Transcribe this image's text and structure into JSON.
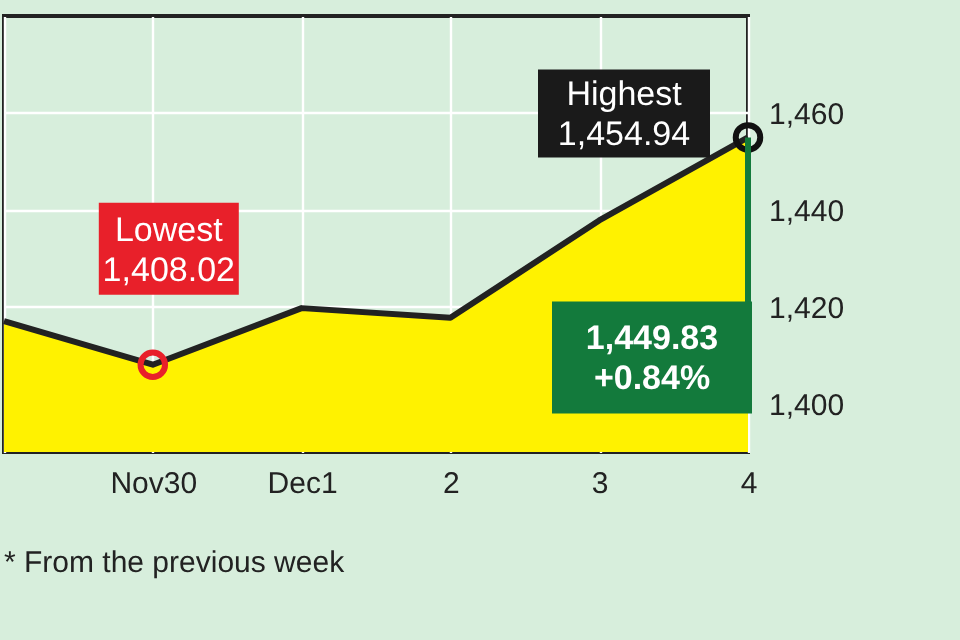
{
  "chart_data": {
    "type": "area",
    "categories": [
      null,
      "Nov30",
      "Dec1",
      "2",
      "3",
      "4"
    ],
    "series": [
      {
        "color": "#fff200",
        "values": [
          1417,
          1408.02,
          1419.7,
          1417.7,
          1437.8,
          1454.94
        ]
      }
    ],
    "ylim": [
      1390,
      1480
    ],
    "yticks": [
      {
        "value": 1400,
        "label": "1,400"
      },
      {
        "value": 1420,
        "label": "1,420"
      },
      {
        "value": 1440,
        "label": "1,440"
      },
      {
        "value": 1460,
        "label": "1,460"
      }
    ],
    "grid": true,
    "annotations": [
      {
        "text": "Lowest\n1,408.02",
        "x": "Nov30",
        "y": 1408.02
      },
      {
        "text": "Highest\n1,454.94",
        "x": "4",
        "y": 1454.94
      },
      {
        "text": "1,449.83\n+0.84%",
        "x": "4",
        "y": 1454.94
      },
      "* From the previous week"
    ]
  }
}
